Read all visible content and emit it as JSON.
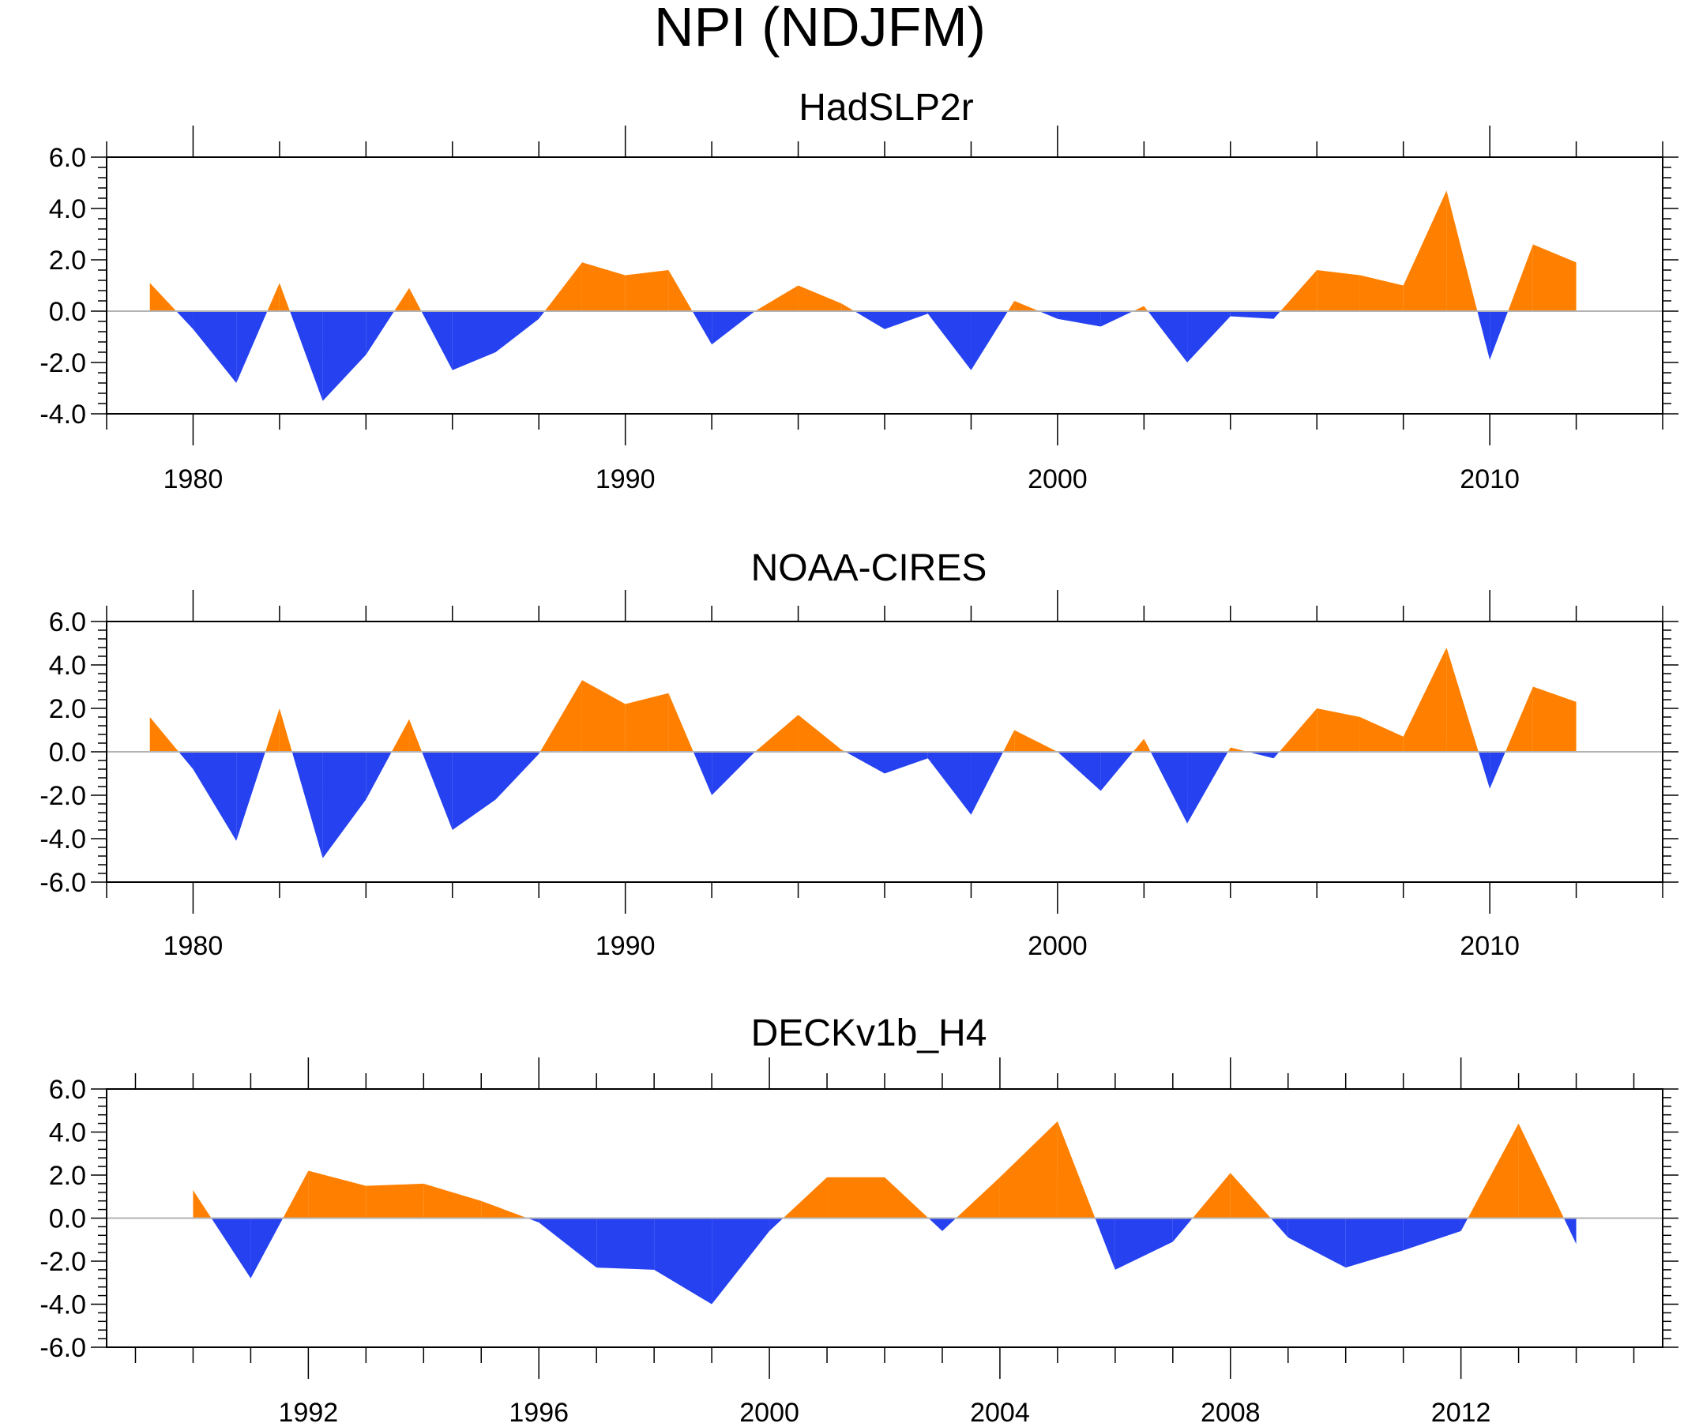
{
  "title": "NPI (NDJFM)",
  "colors": {
    "positive": "#ff8000",
    "negative": "#2541f0",
    "zero_line": "#b3b3b3",
    "axis": "#000000"
  },
  "chart_data": [
    {
      "type": "area",
      "title": "HadSLP2r",
      "xlim": [
        1978,
        2014
      ],
      "ylim": [
        -4,
        6
      ],
      "y_ticks": [
        -4,
        -2,
        0,
        2,
        4,
        6
      ],
      "y_tick_labels": [
        "-4.0",
        "-2.0",
        "0.0",
        "2.0",
        "4.0",
        "6.0"
      ],
      "x_major_ticks": [
        1980,
        1990,
        2000,
        2010
      ],
      "x_tick_labels": [
        "1980",
        "1990",
        "2000",
        "2010"
      ],
      "x": [
        1979,
        1980,
        1981,
        1982,
        1983,
        1984,
        1985,
        1986,
        1987,
        1988,
        1989,
        1990,
        1991,
        1992,
        1993,
        1994,
        1995,
        1996,
        1997,
        1998,
        1999,
        2000,
        2001,
        2002,
        2003,
        2004,
        2005,
        2006,
        2007,
        2008,
        2009,
        2010,
        2011,
        2012
      ],
      "values": [
        1.1,
        -0.7,
        -2.8,
        1.1,
        -3.5,
        -1.7,
        0.9,
        -2.3,
        -1.6,
        -0.3,
        1.9,
        1.4,
        1.6,
        -1.3,
        0.0,
        1.0,
        0.3,
        -0.7,
        -0.1,
        -2.3,
        0.4,
        -0.3,
        -0.6,
        0.2,
        -2.0,
        -0.2,
        -0.3,
        1.6,
        1.4,
        1.0,
        4.7,
        -1.9,
        2.6,
        1.9
      ]
    },
    {
      "type": "area",
      "title": "NOAA-CIRES",
      "xlim": [
        1978,
        2014
      ],
      "ylim": [
        -6,
        6
      ],
      "y_ticks": [
        -6,
        -4,
        -2,
        0,
        2,
        4,
        6
      ],
      "y_tick_labels": [
        "-6.0",
        "-4.0",
        "-2.0",
        "0.0",
        "2.0",
        "4.0",
        "6.0"
      ],
      "x_major_ticks": [
        1980,
        1990,
        2000,
        2010
      ],
      "x_tick_labels": [
        "1980",
        "1990",
        "2000",
        "2010"
      ],
      "x": [
        1979,
        1980,
        1981,
        1982,
        1983,
        1984,
        1985,
        1986,
        1987,
        1988,
        1989,
        1990,
        1991,
        1992,
        1993,
        1994,
        1995,
        1996,
        1997,
        1998,
        1999,
        2000,
        2001,
        2002,
        2003,
        2004,
        2005,
        2006,
        2007,
        2008,
        2009,
        2010,
        2011,
        2012
      ],
      "values": [
        1.6,
        -0.8,
        -4.1,
        2.0,
        -4.9,
        -2.2,
        1.5,
        -3.6,
        -2.2,
        -0.1,
        3.3,
        2.2,
        2.7,
        -2.0,
        0.0,
        1.7,
        0.1,
        -1.0,
        -0.3,
        -2.9,
        1.0,
        0.0,
        -1.8,
        0.6,
        -3.3,
        0.2,
        -0.3,
        2.0,
        1.6,
        0.7,
        4.8,
        -1.7,
        3.0,
        2.3
      ]
    },
    {
      "type": "area",
      "title": "DECKv1b_H4",
      "xlim": [
        1988.5,
        2015.5
      ],
      "ylim": [
        -6,
        6
      ],
      "y_ticks": [
        -6,
        -4,
        -2,
        0,
        2,
        4,
        6
      ],
      "y_tick_labels": [
        "-6.0",
        "-4.0",
        "-2.0",
        "0.0",
        "2.0",
        "4.0",
        "6.0"
      ],
      "x_major_ticks": [
        1992,
        1996,
        2000,
        2004,
        2008,
        2012
      ],
      "x_tick_labels": [
        "1992",
        "1996",
        "2000",
        "2004",
        "2008",
        "2012"
      ],
      "x": [
        1990,
        1991,
        1992,
        1993,
        1994,
        1995,
        1996,
        1997,
        1998,
        1999,
        2000,
        2001,
        2002,
        2003,
        2004,
        2005,
        2006,
        2007,
        2008,
        2009,
        2010,
        2011,
        2012,
        2013,
        2014
      ],
      "values": [
        1.3,
        -2.8,
        2.2,
        1.5,
        1.6,
        0.8,
        -0.2,
        -2.3,
        -2.4,
        -4.0,
        -0.6,
        1.9,
        1.9,
        -0.6,
        1.9,
        4.5,
        -2.4,
        -1.1,
        2.1,
        -0.9,
        -2.3,
        -1.5,
        -0.6,
        4.4,
        -1.2
      ]
    }
  ]
}
